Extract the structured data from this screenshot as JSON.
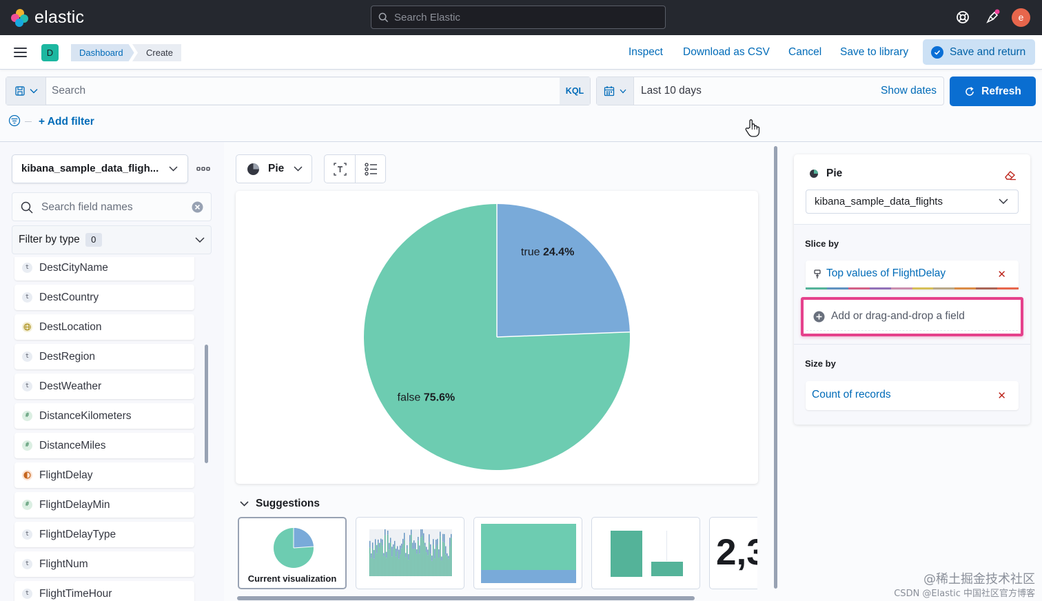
{
  "topbar": {
    "app_name": "elastic",
    "search_placeholder": "Search Elastic",
    "avatar_initial": "e"
  },
  "header": {
    "space_initial": "D",
    "breadcrumbs": [
      "Dashboard",
      "Create"
    ],
    "actions": {
      "inspect": "Inspect",
      "download_csv": "Download as CSV",
      "cancel": "Cancel",
      "save_library": "Save to library",
      "save_return": "Save and return"
    }
  },
  "query": {
    "placeholder": "Search",
    "language": "KQL",
    "date_range": "Last 10 days",
    "show_dates": "Show dates",
    "refresh": "Refresh",
    "add_filter": "+ Add filter"
  },
  "left_panel": {
    "data_view": "kibana_sample_data_fligh...",
    "field_search_placeholder": "Search field names",
    "filter_by_type": "Filter by type",
    "filter_count": "0",
    "fields": [
      {
        "name": "DestCityName",
        "type": "t"
      },
      {
        "name": "DestCountry",
        "type": "t"
      },
      {
        "name": "DestLocation",
        "type": "geo"
      },
      {
        "name": "DestRegion",
        "type": "t"
      },
      {
        "name": "DestWeather",
        "type": "t"
      },
      {
        "name": "DistanceKilometers",
        "type": "#"
      },
      {
        "name": "DistanceMiles",
        "type": "#"
      },
      {
        "name": "FlightDelay",
        "type": "bool"
      },
      {
        "name": "FlightDelayMin",
        "type": "#"
      },
      {
        "name": "FlightDelayType",
        "type": "t"
      },
      {
        "name": "FlightNum",
        "type": "t"
      },
      {
        "name": "FlightTimeHour",
        "type": "t"
      }
    ]
  },
  "workspace": {
    "viz_type": "Pie",
    "suggestions_title": "Suggestions",
    "current_viz_label": "Current visualization",
    "metric_preview_text": "2,3"
  },
  "chart_data": {
    "type": "pie",
    "slices": [
      {
        "label": "true",
        "pct_text": "24.4%",
        "value": 24.4,
        "color": "#79aad9"
      },
      {
        "label": "false",
        "pct_text": "75.6%",
        "value": 75.6,
        "color": "#6dccb1"
      }
    ]
  },
  "right_panel": {
    "viz_type": "Pie",
    "data_view": "kibana_sample_data_flights",
    "slice_by_label": "Slice by",
    "slice_by_value": "Top values of FlightDelay",
    "add_field": "Add or drag-and-drop a field",
    "size_by_label": "Size by",
    "size_by_value": "Count of records"
  },
  "watermark": {
    "line1": "@稀土掘金技术社区",
    "line2": "CSDN @Elastic 中国社区官方博客"
  },
  "colors": {
    "accent": "#006bb8",
    "primary_button": "#0a6ed1",
    "highlight": "#e5418c",
    "pie_true": "#79aad9",
    "pie_false": "#6dccb1"
  }
}
